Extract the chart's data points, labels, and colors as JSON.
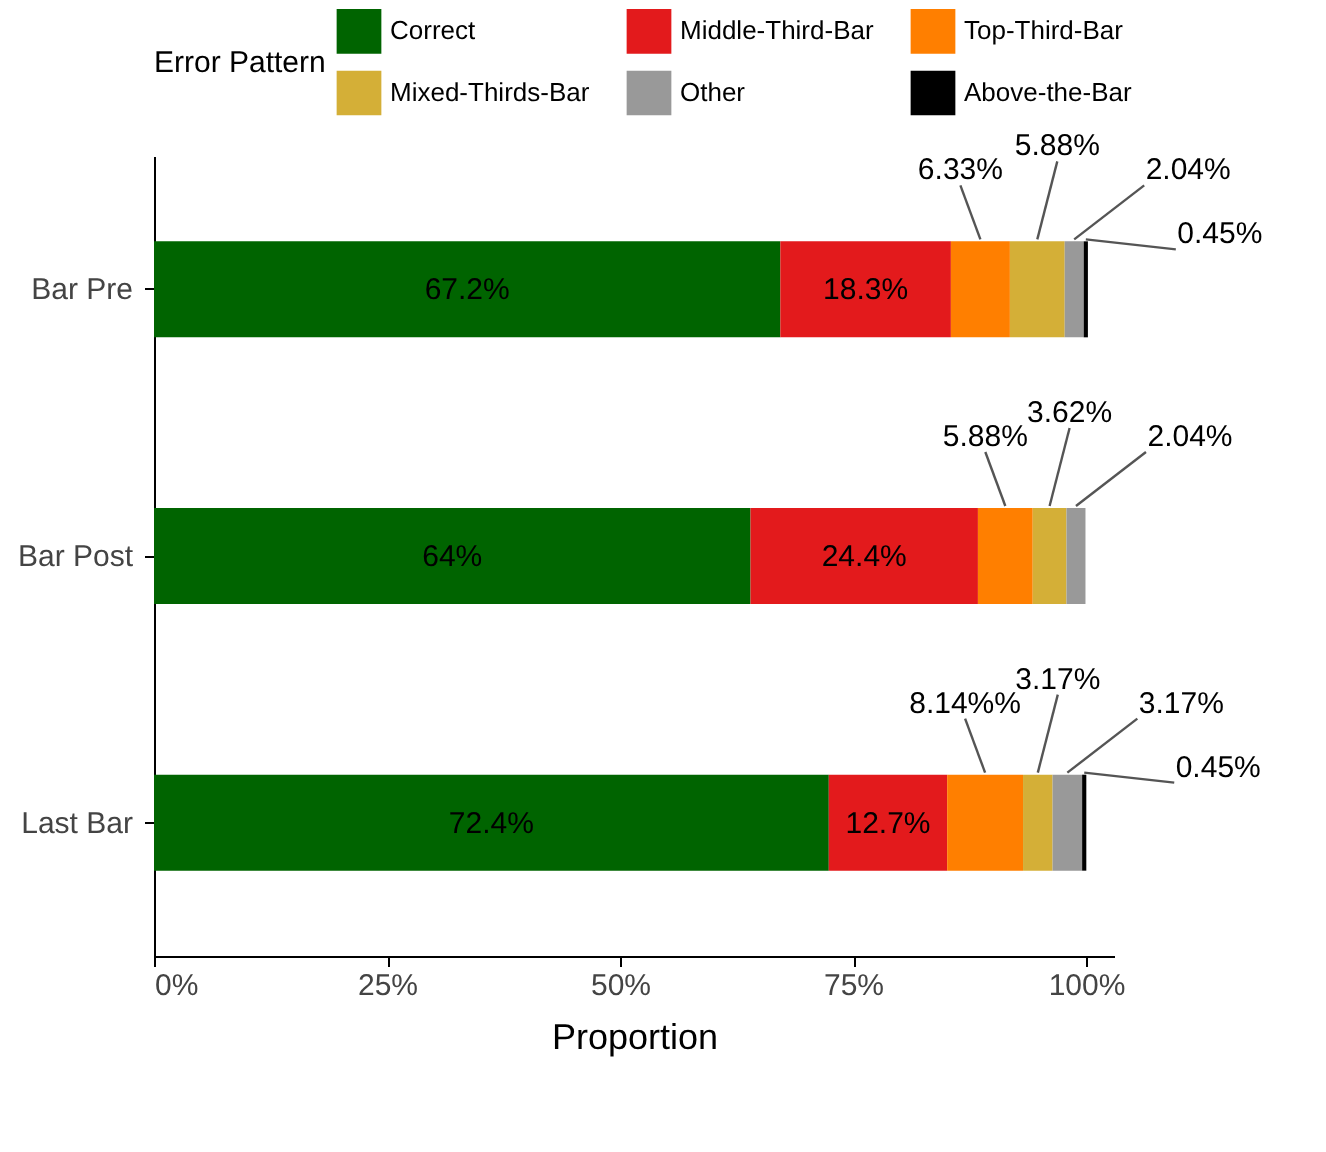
{
  "chart_data": {
    "type": "bar",
    "orientation": "horizontal",
    "stacked": true,
    "categories": [
      "Bar Pre",
      "Bar Post",
      "Last Bar"
    ],
    "xlabel": "Proportion",
    "legend_title": "Error Pattern",
    "legend": "top",
    "xlim": [
      0,
      103
    ],
    "xticks": [
      {
        "value": 0,
        "label": "0%"
      },
      {
        "value": 25,
        "label": "25%"
      },
      {
        "value": 50,
        "label": "50%"
      },
      {
        "value": 75,
        "label": "75%"
      },
      {
        "value": 100,
        "label": "100%"
      }
    ],
    "grid": false,
    "series": [
      {
        "name": "Correct",
        "color": "#006400",
        "values": [
          67.2,
          64,
          72.4
        ],
        "value_labels": [
          "67.2%",
          "64%",
          "72.4%"
        ]
      },
      {
        "name": "Middle-Third-Bar",
        "color": "#e31a1c",
        "values": [
          18.3,
          24.4,
          12.7
        ],
        "value_labels": [
          "18.3%",
          "24.4%",
          "12.7%"
        ]
      },
      {
        "name": "Top-Third-Bar",
        "color": "#ff7f00",
        "values": [
          6.33,
          5.88,
          8.14
        ],
        "value_labels": [
          "6.33%",
          "5.88%",
          "8.14%%"
        ]
      },
      {
        "name": "Mixed-Thirds-Bar",
        "color": "#d4af37",
        "values": [
          5.88,
          3.62,
          3.17
        ],
        "value_labels": [
          "5.88%",
          "3.62%",
          "3.17%"
        ]
      },
      {
        "name": "Other",
        "color": "#999999",
        "values": [
          2.04,
          2.04,
          3.17
        ],
        "value_labels": [
          "2.04%",
          "2.04%",
          "3.17%"
        ]
      },
      {
        "name": "Above-the-Bar",
        "color": "#000000",
        "values": [
          0.45,
          null,
          0.45
        ],
        "value_labels": [
          "0.45%",
          null,
          "0.45%"
        ]
      }
    ]
  }
}
